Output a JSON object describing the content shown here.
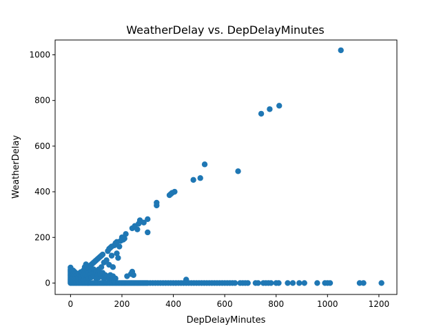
{
  "chart_data": {
    "type": "scatter",
    "title": "WeatherDelay vs. DepDelayMinutes",
    "xlabel": "DepDelayMinutes",
    "ylabel": "WeatherDelay",
    "xlim": [
      -60,
      1270
    ],
    "ylim": [
      -50,
      1065
    ],
    "xticks": [
      0,
      200,
      400,
      600,
      800,
      1000,
      1200
    ],
    "yticks": [
      0,
      200,
      400,
      600,
      800,
      1000
    ],
    "xtick_labels": [
      "0",
      "200",
      "400",
      "600",
      "800",
      "1000",
      "1200"
    ],
    "ytick_labels": [
      "0",
      "200",
      "400",
      "600",
      "800",
      "1000"
    ],
    "grid": false,
    "legend": false,
    "color": "#1f77b4",
    "series": [
      {
        "points": [
          [
            0,
            0
          ],
          [
            0,
            5
          ],
          [
            0,
            10
          ],
          [
            0,
            15
          ],
          [
            0,
            20
          ],
          [
            0,
            25
          ],
          [
            0,
            30
          ],
          [
            0,
            35
          ],
          [
            0,
            40
          ],
          [
            0,
            45
          ],
          [
            0,
            50
          ],
          [
            0,
            55
          ],
          [
            0,
            60
          ],
          [
            0,
            68
          ],
          [
            5,
            0
          ],
          [
            5,
            15
          ],
          [
            5,
            30
          ],
          [
            5,
            45
          ],
          [
            10,
            0
          ],
          [
            10,
            10
          ],
          [
            10,
            25
          ],
          [
            10,
            40
          ],
          [
            10,
            55
          ],
          [
            15,
            0
          ],
          [
            15,
            20
          ],
          [
            15,
            35
          ],
          [
            15,
            50
          ],
          [
            20,
            0
          ],
          [
            20,
            12
          ],
          [
            20,
            28
          ],
          [
            20,
            44
          ],
          [
            25,
            0
          ],
          [
            25,
            18
          ],
          [
            25,
            34
          ],
          [
            30,
            0
          ],
          [
            30,
            10
          ],
          [
            30,
            26
          ],
          [
            30,
            42
          ],
          [
            35,
            0
          ],
          [
            35,
            20
          ],
          [
            35,
            36
          ],
          [
            40,
            0
          ],
          [
            40,
            14
          ],
          [
            40,
            30
          ],
          [
            40,
            48
          ],
          [
            45,
            0
          ],
          [
            45,
            22
          ],
          [
            45,
            40
          ],
          [
            50,
            0
          ],
          [
            50,
            18
          ],
          [
            50,
            35
          ],
          [
            50,
            55
          ],
          [
            55,
            0
          ],
          [
            55,
            25
          ],
          [
            55,
            45
          ],
          [
            55,
            70
          ],
          [
            60,
            0
          ],
          [
            60,
            15
          ],
          [
            60,
            38
          ],
          [
            60,
            82
          ],
          [
            65,
            0
          ],
          [
            65,
            30
          ],
          [
            65,
            50
          ],
          [
            70,
            0
          ],
          [
            70,
            20
          ],
          [
            70,
            45
          ],
          [
            70,
            65
          ],
          [
            75,
            0
          ],
          [
            75,
            35
          ],
          [
            75,
            72
          ],
          [
            80,
            0
          ],
          [
            80,
            25
          ],
          [
            80,
            55
          ],
          [
            80,
            80
          ],
          [
            85,
            0
          ],
          [
            85,
            40
          ],
          [
            85,
            85
          ],
          [
            90,
            0
          ],
          [
            90,
            30
          ],
          [
            90,
            60
          ],
          [
            90,
            90
          ],
          [
            95,
            0
          ],
          [
            95,
            45
          ],
          [
            95,
            95
          ],
          [
            100,
            0
          ],
          [
            100,
            20
          ],
          [
            100,
            50
          ],
          [
            100,
            100
          ],
          [
            105,
            0
          ],
          [
            105,
            35
          ],
          [
            105,
            105
          ],
          [
            110,
            0
          ],
          [
            110,
            25
          ],
          [
            110,
            60
          ],
          [
            110,
            110
          ],
          [
            115,
            0
          ],
          [
            115,
            40
          ],
          [
            115,
            115
          ],
          [
            120,
            0
          ],
          [
            120,
            30
          ],
          [
            120,
            70
          ],
          [
            120,
            120
          ],
          [
            125,
            0
          ],
          [
            125,
            45
          ],
          [
            125,
            125
          ],
          [
            130,
            0
          ],
          [
            130,
            20
          ],
          [
            130,
            90
          ],
          [
            135,
            0
          ],
          [
            135,
            35
          ],
          [
            140,
            0
          ],
          [
            140,
            25
          ],
          [
            140,
            100
          ],
          [
            145,
            0
          ],
          [
            145,
            30
          ],
          [
            145,
            140
          ],
          [
            150,
            0
          ],
          [
            150,
            20
          ],
          [
            150,
            80
          ],
          [
            150,
            150
          ],
          [
            155,
            0
          ],
          [
            155,
            35
          ],
          [
            155,
            155
          ],
          [
            160,
            0
          ],
          [
            160,
            15
          ],
          [
            160,
            120
          ],
          [
            160,
            160
          ],
          [
            165,
            0
          ],
          [
            165,
            30
          ],
          [
            165,
            70
          ],
          [
            170,
            0
          ],
          [
            170,
            10
          ],
          [
            170,
            165
          ],
          [
            175,
            0
          ],
          [
            175,
            20
          ],
          [
            175,
            175
          ],
          [
            180,
            0
          ],
          [
            180,
            130
          ],
          [
            180,
            180
          ],
          [
            185,
            0
          ],
          [
            185,
            110
          ],
          [
            190,
            0
          ],
          [
            190,
            160
          ],
          [
            195,
            0
          ],
          [
            195,
            185
          ],
          [
            200,
            0
          ],
          [
            200,
            200
          ],
          [
            205,
            0
          ],
          [
            205,
            190
          ],
          [
            210,
            0
          ],
          [
            210,
            195
          ],
          [
            215,
            0
          ],
          [
            215,
            215
          ],
          [
            220,
            0
          ],
          [
            220,
            30
          ],
          [
            225,
            0
          ],
          [
            230,
            0
          ],
          [
            235,
            0
          ],
          [
            235,
            40
          ],
          [
            240,
            0
          ],
          [
            240,
            50
          ],
          [
            240,
            240
          ],
          [
            245,
            0
          ],
          [
            245,
            35
          ],
          [
            250,
            0
          ],
          [
            250,
            250
          ],
          [
            255,
            0
          ],
          [
            260,
            0
          ],
          [
            260,
            235
          ],
          [
            265,
            0
          ],
          [
            265,
            260
          ],
          [
            270,
            0
          ],
          [
            270,
            275
          ],
          [
            275,
            0
          ],
          [
            280,
            0
          ],
          [
            285,
            0
          ],
          [
            285,
            265
          ],
          [
            290,
            0
          ],
          [
            295,
            0
          ],
          [
            300,
            0
          ],
          [
            300,
            280
          ],
          [
            300,
            222
          ],
          [
            310,
            0
          ],
          [
            320,
            0
          ],
          [
            330,
            0
          ],
          [
            335,
            340
          ],
          [
            335,
            352
          ],
          [
            340,
            0
          ],
          [
            350,
            0
          ],
          [
            360,
            0
          ],
          [
            370,
            0
          ],
          [
            380,
            0
          ],
          [
            385,
            385
          ],
          [
            390,
            0
          ],
          [
            390,
            390
          ],
          [
            395,
            395
          ],
          [
            400,
            0
          ],
          [
            405,
            400
          ],
          [
            410,
            0
          ],
          [
            420,
            0
          ],
          [
            430,
            0
          ],
          [
            440,
            0
          ],
          [
            450,
            0
          ],
          [
            450,
            15
          ],
          [
            460,
            0
          ],
          [
            470,
            0
          ],
          [
            478,
            452
          ],
          [
            480,
            0
          ],
          [
            490,
            0
          ],
          [
            500,
            0
          ],
          [
            505,
            460
          ],
          [
            510,
            0
          ],
          [
            520,
            0
          ],
          [
            522,
            520
          ],
          [
            530,
            0
          ],
          [
            540,
            0
          ],
          [
            550,
            0
          ],
          [
            560,
            0
          ],
          [
            570,
            0
          ],
          [
            580,
            0
          ],
          [
            590,
            0
          ],
          [
            600,
            0
          ],
          [
            610,
            0
          ],
          [
            620,
            0
          ],
          [
            630,
            0
          ],
          [
            640,
            0
          ],
          [
            652,
            490
          ],
          [
            660,
            0
          ],
          [
            670,
            0
          ],
          [
            680,
            0
          ],
          [
            690,
            0
          ],
          [
            720,
            0
          ],
          [
            730,
            0
          ],
          [
            742,
            742
          ],
          [
            750,
            0
          ],
          [
            760,
            0
          ],
          [
            770,
            0
          ],
          [
            775,
            762
          ],
          [
            780,
            0
          ],
          [
            800,
            0
          ],
          [
            810,
            0
          ],
          [
            812,
            777
          ],
          [
            845,
            0
          ],
          [
            865,
            0
          ],
          [
            890,
            0
          ],
          [
            910,
            0
          ],
          [
            960,
            0
          ],
          [
            990,
            0
          ],
          [
            1000,
            0
          ],
          [
            1010,
            0
          ],
          [
            1052,
            1020
          ],
          [
            1125,
            0
          ],
          [
            1140,
            0
          ],
          [
            1210,
            0
          ]
        ]
      }
    ]
  }
}
